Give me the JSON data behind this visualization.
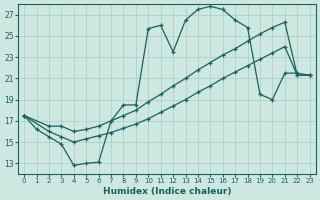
{
  "xlabel": "Humidex (Indice chaleur)",
  "bg_color": "#cce8e0",
  "line_color": "#1a6060",
  "grid_color": "#aaccc4",
  "xlim": [
    -0.5,
    23.5
  ],
  "ylim": [
    12,
    28
  ],
  "xticks": [
    0,
    1,
    2,
    3,
    4,
    5,
    6,
    7,
    8,
    9,
    10,
    11,
    12,
    13,
    14,
    15,
    16,
    17,
    18,
    19,
    20,
    21,
    22,
    23
  ],
  "yticks": [
    13,
    15,
    17,
    19,
    21,
    23,
    25,
    27
  ],
  "curve1_x": [
    0,
    1,
    2,
    3,
    4,
    5,
    6,
    7,
    8,
    9,
    10,
    11,
    12,
    13,
    14,
    15,
    16,
    17,
    18,
    19,
    20,
    21,
    22,
    23
  ],
  "curve1_y": [
    17.5,
    16.2,
    15.5,
    14.8,
    12.8,
    13.0,
    13.1,
    17.0,
    18.5,
    18.5,
    25.7,
    26.0,
    23.5,
    26.5,
    27.5,
    27.8,
    27.5,
    26.5,
    25.8,
    19.5,
    19.0,
    21.5,
    21.5,
    21.3
  ],
  "curve2_x": [
    0,
    2,
    3,
    4,
    5,
    6,
    7,
    8,
    9,
    10,
    11,
    12,
    13,
    14,
    15,
    16,
    17,
    18,
    19,
    20,
    21,
    22,
    23
  ],
  "curve2_y": [
    17.5,
    16.5,
    16.5,
    16.0,
    16.2,
    16.5,
    17.0,
    17.5,
    18.0,
    18.8,
    19.5,
    20.3,
    21.0,
    21.8,
    22.5,
    23.2,
    23.8,
    24.5,
    25.2,
    25.8,
    26.3,
    21.3,
    21.3
  ],
  "curve3_x": [
    0,
    2,
    3,
    4,
    5,
    6,
    7,
    8,
    9,
    10,
    11,
    12,
    13,
    14,
    15,
    16,
    17,
    18,
    19,
    20,
    21,
    22,
    23
  ],
  "curve3_y": [
    17.5,
    16.0,
    15.5,
    15.0,
    15.3,
    15.6,
    15.9,
    16.3,
    16.7,
    17.2,
    17.8,
    18.4,
    19.0,
    19.7,
    20.3,
    21.0,
    21.6,
    22.2,
    22.8,
    23.4,
    24.0,
    21.3,
    21.3
  ]
}
